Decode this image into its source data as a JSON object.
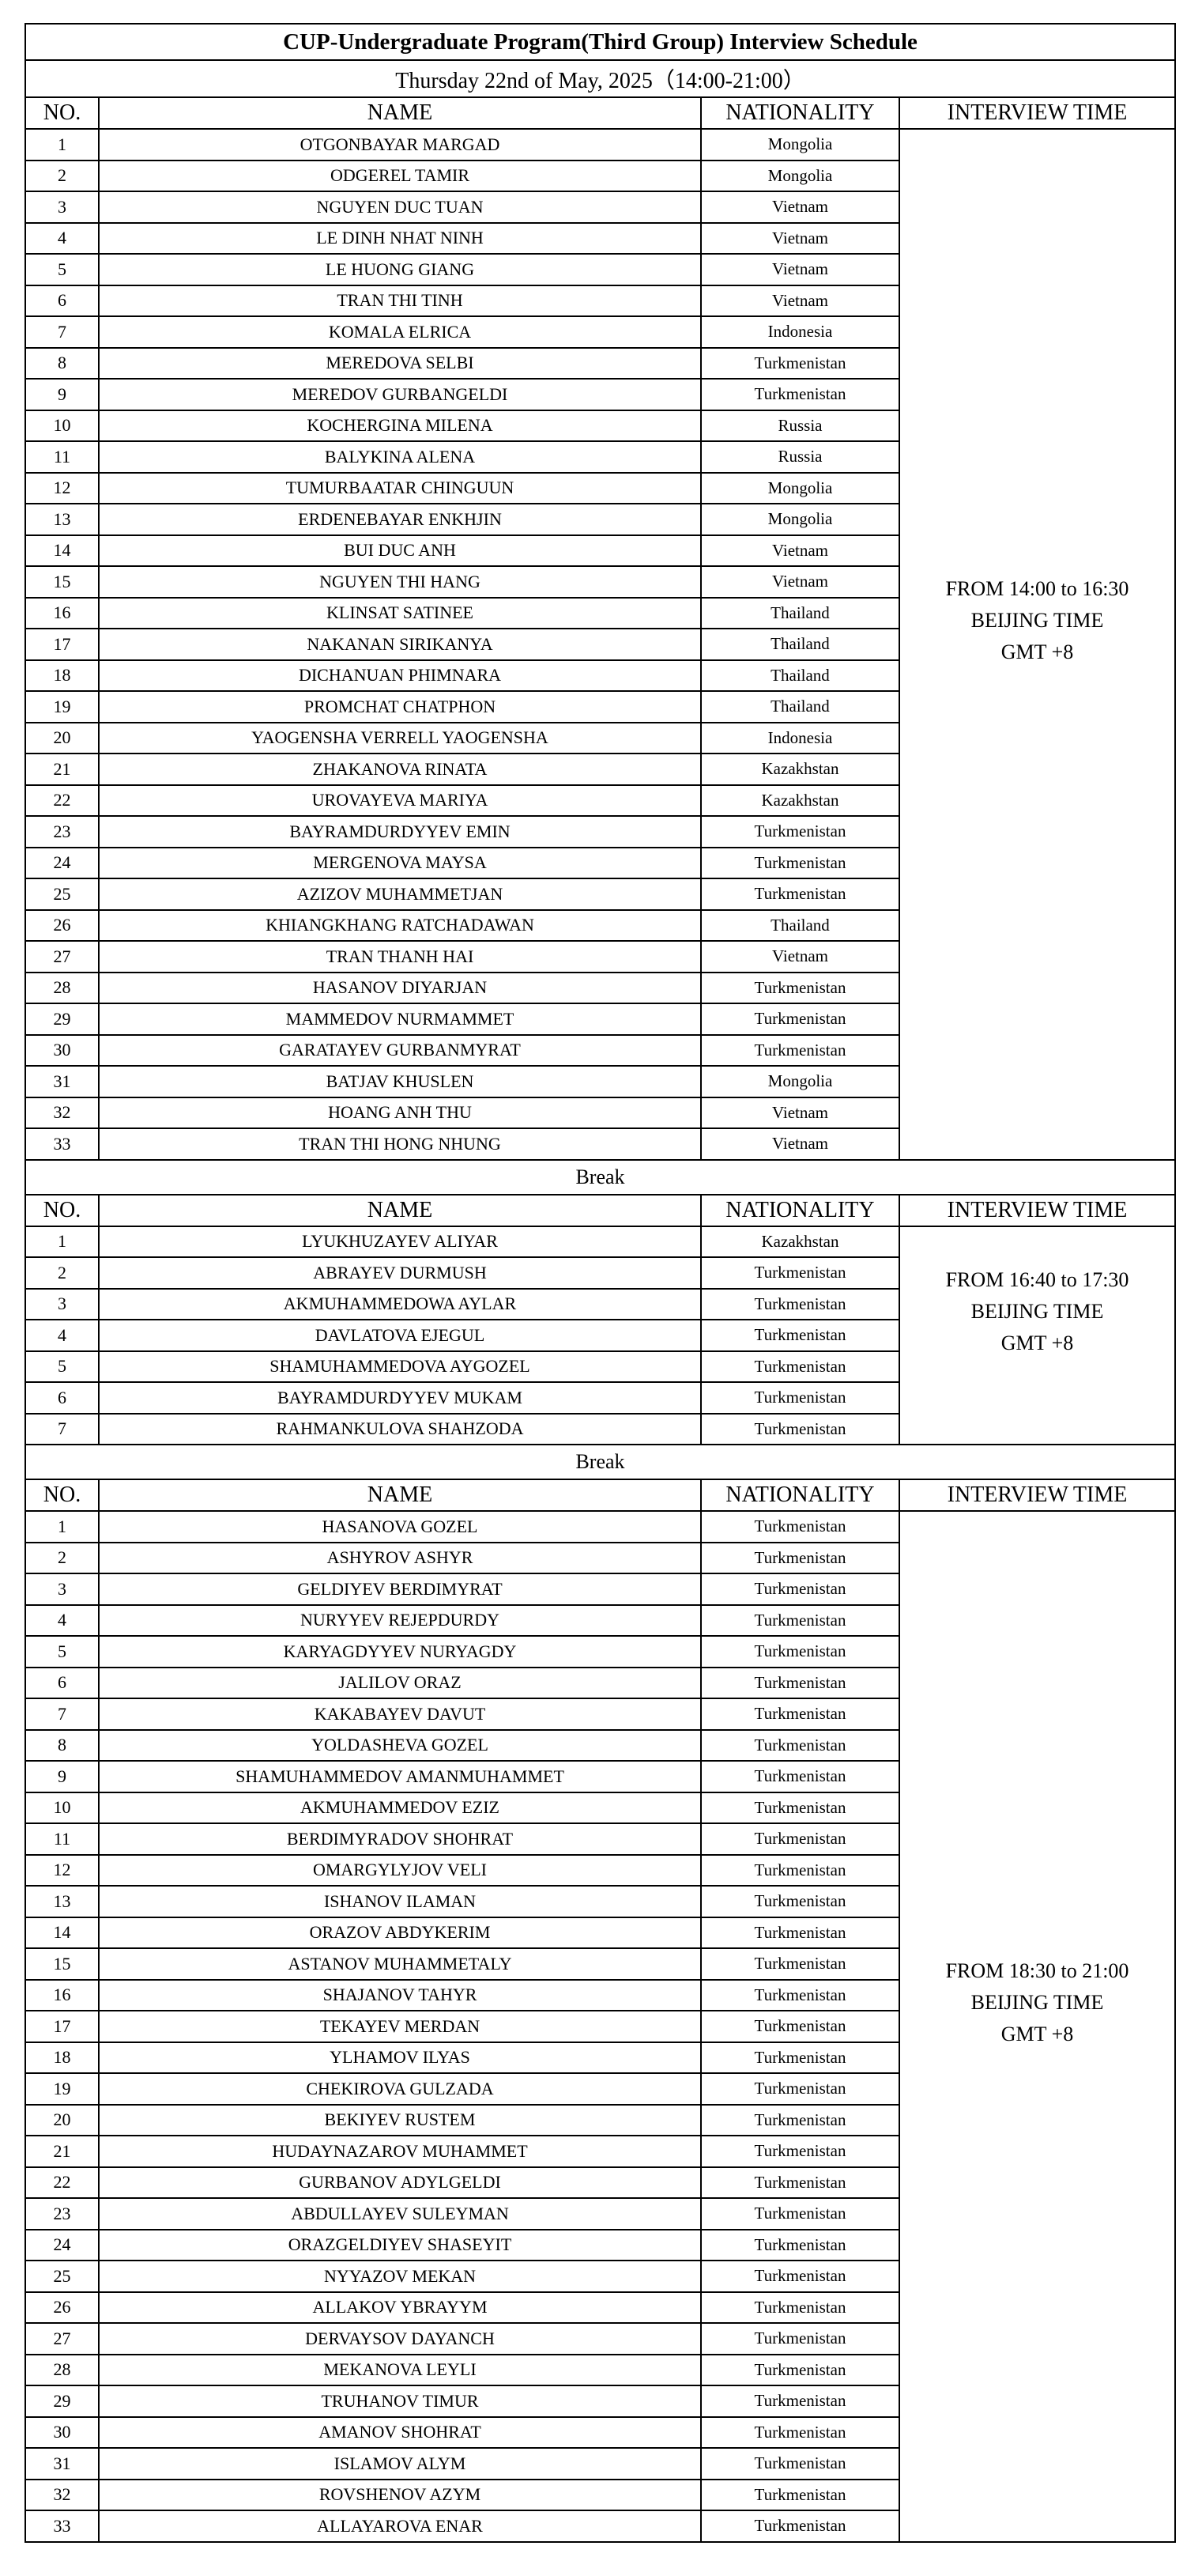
{
  "title": "CUP-Undergraduate Program(Third Group) Interview Schedule",
  "date": "Thursday 22nd of May, 2025（14:00-21:00）",
  "columns": [
    "NO.",
    "NAME",
    "NATIONALITY",
    "INTERVIEW TIME"
  ],
  "break_label": "Break",
  "sessions": [
    {
      "time": [
        "FROM 14:00 to 16:30",
        "BEIJING TIME",
        "GMT +8"
      ],
      "rows": [
        [
          "1",
          "OTGONBAYAR MARGAD",
          "Mongolia"
        ],
        [
          "2",
          "ODGEREL TAMIR",
          "Mongolia"
        ],
        [
          "3",
          "NGUYEN DUC TUAN",
          "Vietnam"
        ],
        [
          "4",
          "LE DINH NHAT NINH",
          "Vietnam"
        ],
        [
          "5",
          "LE HUONG GIANG",
          "Vietnam"
        ],
        [
          "6",
          "TRAN THI TINH",
          "Vietnam"
        ],
        [
          "7",
          "KOMALA ELRICA",
          "Indonesia"
        ],
        [
          "8",
          "MEREDOVA SELBI",
          "Turkmenistan"
        ],
        [
          "9",
          "MEREDOV GURBANGELDI",
          "Turkmenistan"
        ],
        [
          "10",
          "KOCHERGINA MILENA",
          "Russia"
        ],
        [
          "11",
          "BALYKINA ALENA",
          "Russia"
        ],
        [
          "12",
          "TUMURBAATAR CHINGUUN",
          "Mongolia"
        ],
        [
          "13",
          "ERDENEBAYAR ENKHJIN",
          "Mongolia"
        ],
        [
          "14",
          "BUI DUC ANH",
          "Vietnam"
        ],
        [
          "15",
          "NGUYEN THI HANG",
          "Vietnam"
        ],
        [
          "16",
          "KLINSAT SATINEE",
          "Thailand"
        ],
        [
          "17",
          "NAKANAN SIRIKANYA",
          "Thailand"
        ],
        [
          "18",
          "DICHANUAN PHIMNARA",
          "Thailand"
        ],
        [
          "19",
          "PROMCHAT CHATPHON",
          "Thailand"
        ],
        [
          "20",
          "YAOGENSHA VERRELL YAOGENSHA",
          "Indonesia"
        ],
        [
          "21",
          "ZHAKANOVA RINATA",
          "Kazakhstan"
        ],
        [
          "22",
          "UROVAYEVA MARIYA",
          "Kazakhstan"
        ],
        [
          "23",
          "BAYRAMDURDYYEV EMIN",
          "Turkmenistan"
        ],
        [
          "24",
          "MERGENOVA MAYSA",
          "Turkmenistan"
        ],
        [
          "25",
          "AZIZOV MUHAMMETJAN",
          "Turkmenistan"
        ],
        [
          "26",
          "KHIANGKHANG RATCHADAWAN",
          "Thailand"
        ],
        [
          "27",
          "TRAN THANH HAI",
          "Vietnam"
        ],
        [
          "28",
          "HASANOV DIYARJAN",
          "Turkmenistan"
        ],
        [
          "29",
          "MAMMEDOV NURMAMMET",
          "Turkmenistan"
        ],
        [
          "30",
          "GARATAYEV GURBANMYRAT",
          "Turkmenistan"
        ],
        [
          "31",
          "BATJAV KHUSLEN",
          "Mongolia"
        ],
        [
          "32",
          "HOANG ANH THU",
          "Vietnam"
        ],
        [
          "33",
          "TRAN THI HONG NHUNG",
          "Vietnam"
        ]
      ]
    },
    {
      "time": [
        "FROM 16:40 to 17:30",
        "BEIJING TIME",
        "GMT +8"
      ],
      "rows": [
        [
          "1",
          "LYUKHUZAYEV ALIYAR",
          "Kazakhstan"
        ],
        [
          "2",
          "ABRAYEV DURMUSH",
          "Turkmenistan"
        ],
        [
          "3",
          "AKMUHAMMEDOWA AYLAR",
          "Turkmenistan"
        ],
        [
          "4",
          "DAVLATOVA EJEGUL",
          "Turkmenistan"
        ],
        [
          "5",
          "SHAMUHAMMEDOVA AYGOZEL",
          "Turkmenistan"
        ],
        [
          "6",
          "BAYRAMDURDYYEV MUKAM",
          "Turkmenistan"
        ],
        [
          "7",
          "RAHMANKULOVA SHAHZODA",
          "Turkmenistan"
        ]
      ]
    },
    {
      "time": [
        "FROM 18:30 to 21:00",
        "BEIJING TIME",
        "GMT +8"
      ],
      "rows": [
        [
          "1",
          "HASANOVA GOZEL",
          "Turkmenistan"
        ],
        [
          "2",
          "ASHYROV ASHYR",
          "Turkmenistan"
        ],
        [
          "3",
          "GELDIYEV BERDIMYRAT",
          "Turkmenistan"
        ],
        [
          "4",
          "NURYYEV REJEPDURDY",
          "Turkmenistan"
        ],
        [
          "5",
          "KARYAGDYYEV NURYAGDY",
          "Turkmenistan"
        ],
        [
          "6",
          "JALILOV ORAZ",
          "Turkmenistan"
        ],
        [
          "7",
          "KAKABAYEV DAVUT",
          "Turkmenistan"
        ],
        [
          "8",
          "YOLDASHEVA GOZEL",
          "Turkmenistan"
        ],
        [
          "9",
          "SHAMUHAMMEDOV AMANMUHAMMET",
          "Turkmenistan"
        ],
        [
          "10",
          "AKMUHAMMEDOV EZIZ",
          "Turkmenistan"
        ],
        [
          "11",
          "BERDIMYRADOV SHOHRAT",
          "Turkmenistan"
        ],
        [
          "12",
          "OMARGYLYJOV VELI",
          "Turkmenistan"
        ],
        [
          "13",
          "ISHANOV ILAMAN",
          "Turkmenistan"
        ],
        [
          "14",
          "ORAZOV ABDYKERIM",
          "Turkmenistan"
        ],
        [
          "15",
          "ASTANOV MUHAMMETALY",
          "Turkmenistan"
        ],
        [
          "16",
          "SHAJANOV TAHYR",
          "Turkmenistan"
        ],
        [
          "17",
          "TEKAYEV MERDAN",
          "Turkmenistan"
        ],
        [
          "18",
          "YLHAMOV ILYAS",
          "Turkmenistan"
        ],
        [
          "19",
          "CHEKIROVA GULZADA",
          "Turkmenistan"
        ],
        [
          "20",
          "BEKIYEV RUSTEM",
          "Turkmenistan"
        ],
        [
          "21",
          "HUDAYNAZAROV MUHAMMET",
          "Turkmenistan"
        ],
        [
          "22",
          "GURBANOV ADYLGELDI",
          "Turkmenistan"
        ],
        [
          "23",
          "ABDULLAYEV SULEYMAN",
          "Turkmenistan"
        ],
        [
          "24",
          "ORAZGELDIYEV SHASEYIT",
          "Turkmenistan"
        ],
        [
          "25",
          "NYYAZOV MEKAN",
          "Turkmenistan"
        ],
        [
          "26",
          "ALLAKOV YBRAYYM",
          "Turkmenistan"
        ],
        [
          "27",
          "DERVAYSOV DAYANCH",
          "Turkmenistan"
        ],
        [
          "28",
          "MEKANOVA LEYLI",
          "Turkmenistan"
        ],
        [
          "29",
          "TRUHANOV TIMUR",
          "Turkmenistan"
        ],
        [
          "30",
          "AMANOV SHOHRAT",
          "Turkmenistan"
        ],
        [
          "31",
          "ISLAMOV ALYM",
          "Turkmenistan"
        ],
        [
          "32",
          "ROVSHENOV AZYM",
          "Turkmenistan"
        ],
        [
          "33",
          "ALLAYAROVA ENAR",
          "Turkmenistan"
        ]
      ]
    }
  ]
}
